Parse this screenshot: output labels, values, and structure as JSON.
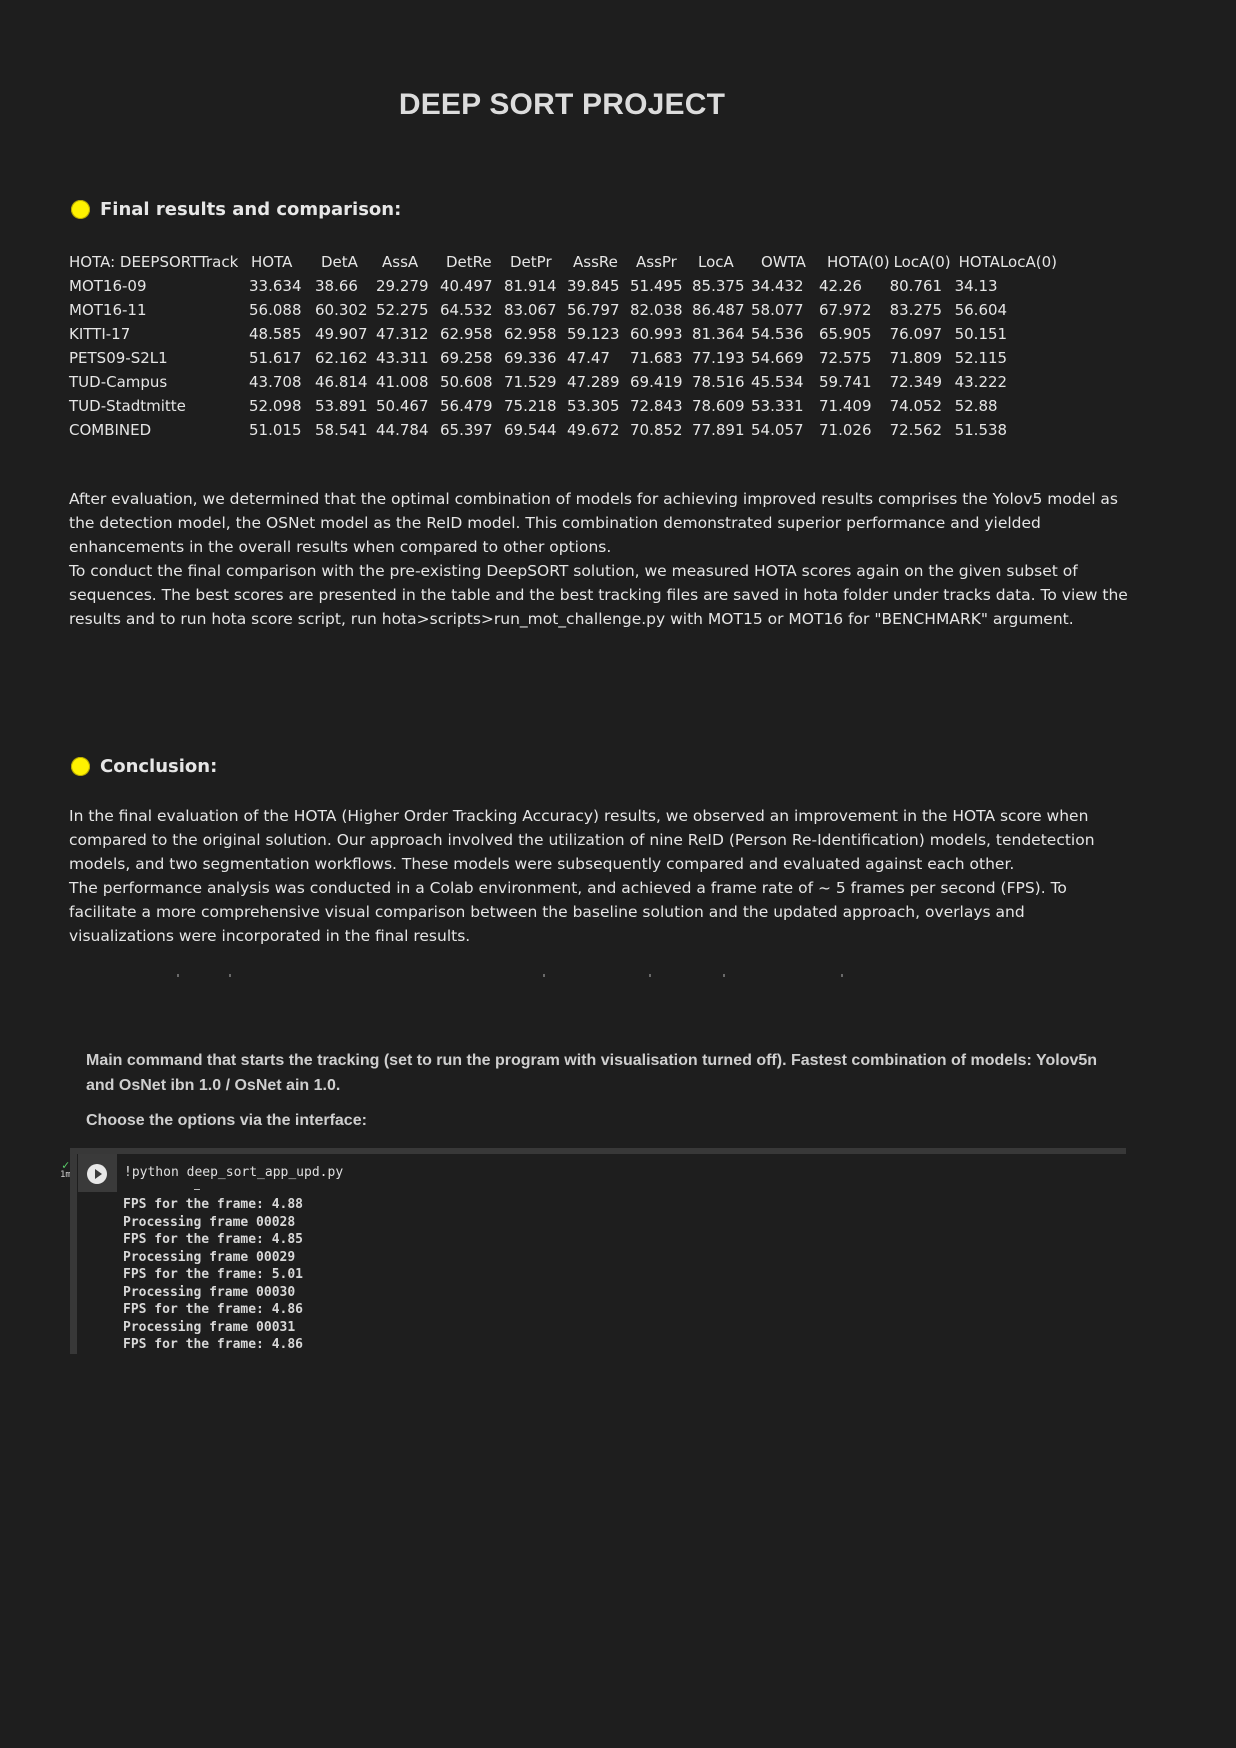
{
  "title": "DEEP SORT PROJECT",
  "results_section": {
    "heading": "Final results and comparison:",
    "table": {
      "columns": [
        "HOTA: DEEPSORTTrack",
        "HOTA",
        "DetA",
        "AssA",
        "DetRe",
        "DetPr",
        "AssRe",
        "AssPr",
        "LocA",
        "OWTA",
        "HOTA(0)",
        "LocA(0)",
        "HOTALocA(0)"
      ],
      "rows": [
        [
          "MOT16-09",
          "33.634",
          "38.66",
          "29.279",
          "40.497",
          "81.914",
          "39.845",
          "51.495",
          "85.375",
          "34.432",
          "42.26",
          "80.761",
          "34.13"
        ],
        [
          "MOT16-11",
          "56.088",
          "60.302",
          "52.275",
          "64.532",
          "83.067",
          "56.797",
          "82.038",
          "86.487",
          "58.077",
          "67.972",
          "83.275",
          "56.604"
        ],
        [
          "KITTI-17",
          "48.585",
          "49.907",
          "47.312",
          "62.958",
          "62.958",
          "59.123",
          "60.993",
          "81.364",
          "54.536",
          "65.905",
          "76.097",
          "50.151"
        ],
        [
          "PETS09-S2L1",
          "51.617",
          "62.162",
          "43.311",
          "69.258",
          "69.336",
          "47.47",
          "71.683",
          "77.193",
          "54.669",
          "72.575",
          "71.809",
          "52.115"
        ],
        [
          "TUD-Campus",
          "43.708",
          "46.814",
          "41.008",
          "50.608",
          "71.529",
          "47.289",
          "69.419",
          "78.516",
          "45.534",
          "59.741",
          "72.349",
          "43.222"
        ],
        [
          "TUD-Stadtmitte",
          "52.098",
          "53.891",
          "50.467",
          "56.479",
          "75.218",
          "53.305",
          "72.843",
          "78.609",
          "53.331",
          "71.409",
          "74.052",
          "52.88"
        ],
        [
          "COMBINED",
          "51.015",
          "58.541",
          "44.784",
          "65.397",
          "69.544",
          "49.672",
          "70.852",
          "77.891",
          "54.057",
          "71.026",
          "72.562",
          "51.538"
        ]
      ]
    },
    "paragraph_1": "After evaluation, we determined that the optimal combination of models for achieving improved results comprises the Yolov5 model as the detection model, the OSNet model as the ReID model. This combination demonstrated superior performance and yielded enhancements in the overall results when compared to other options.",
    "paragraph_2": "To conduct the final comparison with the pre-existing DeepSORT solution, we measured HOTA scores again on the given subset of sequences. The best scores are presented in the table and the best tracking files are saved in hota folder under tracks data. To view the results and to run hota score script, run  hota>scripts>run_mot_challenge.py with MOT15 or MOT16 for \"BENCHMARK\" argument."
  },
  "conclusion_section": {
    "heading": "Conclusion:",
    "paragraph_1": "In the final evaluation of the HOTA (Higher Order Tracking Accuracy) results, we observed an improvement in the HOTA score when compared to the original solution. Our approach involved the utilization of nine ReID (Person Re-Identification) models, tendetection models, and two segmentation workflows. These models were subsequently compared and evaluated against each other.",
    "paragraph_2": "The performance analysis was conducted in a Colab environment, and achieved a frame rate of ~ 5 frames per second (FPS). To facilitate a more comprehensive visual comparison between the baseline solution and the updated approach, overlays and visualizations were incorporated in the final results."
  },
  "colab": {
    "description": "Main command that starts the tracking (set to run the program with visualisation turned off). Fastest combination of models: Yolov5n and OsNet ibn 1.0 / OsNet ain 1.0.",
    "instruction": "Choose the options via the interface:",
    "exec_status": "1m",
    "code": "!python deep_sort_app_upd.py",
    "output_lines": [
      "FPS for the frame: 4.88",
      "Processing frame 00028",
      "FPS for the frame: 4.85",
      "Processing frame 00029",
      "FPS for the frame: 5.01",
      "Processing frame 00030",
      "FPS for the frame: 4.86",
      "Processing frame 00031",
      "FPS for the frame: 4.86"
    ]
  },
  "colors": {
    "background": "#1e1e1e",
    "text": "#e6e6e6",
    "bullet": "#fff200",
    "success": "#5bd16b"
  },
  "icons": {
    "bullet": "yellow-circle-icon",
    "run": "play-circle-icon",
    "status": "check-icon"
  }
}
